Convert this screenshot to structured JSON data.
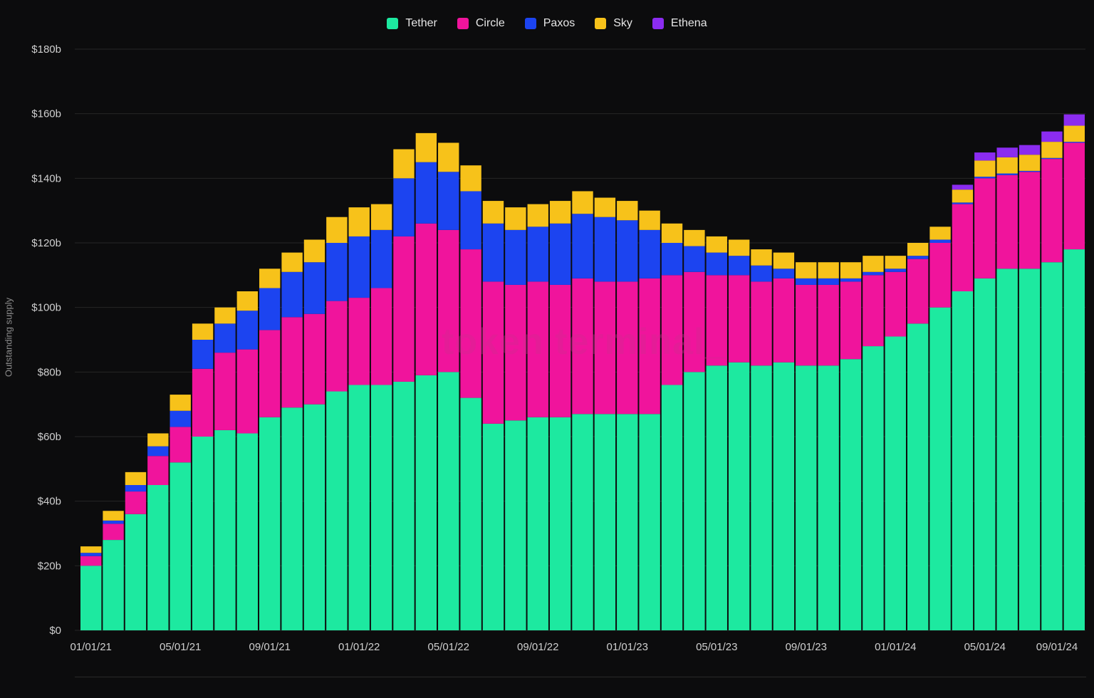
{
  "watermark": "token terminal_",
  "chart_data": {
    "type": "bar",
    "stacked": true,
    "ylabel": "Outstanding supply",
    "ylim": [
      0,
      180
    ],
    "yticks": [
      {
        "value": 0,
        "label": "$0"
      },
      {
        "value": 20,
        "label": "$20b"
      },
      {
        "value": 40,
        "label": "$40b"
      },
      {
        "value": 60,
        "label": "$60b"
      },
      {
        "value": 80,
        "label": "$80b"
      },
      {
        "value": 100,
        "label": "$100b"
      },
      {
        "value": 120,
        "label": "$120b"
      },
      {
        "value": 140,
        "label": "$140b"
      },
      {
        "value": 160,
        "label": "$160b"
      },
      {
        "value": 180,
        "label": "$180b"
      }
    ],
    "xticks": [
      {
        "index": 0,
        "label": "01/01/21"
      },
      {
        "index": 4,
        "label": "05/01/21"
      },
      {
        "index": 8,
        "label": "09/01/21"
      },
      {
        "index": 12,
        "label": "01/01/22"
      },
      {
        "index": 16,
        "label": "05/01/22"
      },
      {
        "index": 20,
        "label": "09/01/22"
      },
      {
        "index": 24,
        "label": "01/01/23"
      },
      {
        "index": 28,
        "label": "05/01/23"
      },
      {
        "index": 32,
        "label": "09/01/23"
      },
      {
        "index": 36,
        "label": "01/01/24"
      },
      {
        "index": 40,
        "label": "05/01/24"
      },
      {
        "index": 44,
        "label": "09/01/24"
      }
    ],
    "legend_position": "top-center",
    "categories": [
      "Jan 2021",
      "Feb 2021",
      "Mar 2021",
      "Apr 2021",
      "May 2021",
      "Jun 2021",
      "Jul 2021",
      "Aug 2021",
      "Sep 2021",
      "Oct 2021",
      "Nov 2021",
      "Dec 2021",
      "Jan 2022",
      "Feb 2022",
      "Mar 2022",
      "Apr 2022",
      "May 2022",
      "Jun 2022",
      "Jul 2022",
      "Aug 2022",
      "Sep 2022",
      "Oct 2022",
      "Nov 2022",
      "Dec 2022",
      "Jan 2023",
      "Feb 2023",
      "Mar 2023",
      "Apr 2023",
      "May 2023",
      "Jun 2023",
      "Jul 2023",
      "Aug 2023",
      "Sep 2023",
      "Oct 2023",
      "Nov 2023",
      "Dec 2023",
      "Jan 2024",
      "Feb 2024",
      "Mar 2024",
      "Apr 2024",
      "May 2024",
      "Jun 2024",
      "Jul 2024",
      "Aug 2024",
      "Sep 2024"
    ],
    "series": [
      {
        "name": "Tether",
        "color": "#1de9a0",
        "values": [
          20,
          28,
          36,
          45,
          52,
          60,
          62,
          61,
          66,
          69,
          70,
          74,
          76,
          76,
          77,
          79,
          80,
          72,
          64,
          65,
          66,
          66,
          67,
          67,
          67,
          67,
          76,
          80,
          82,
          83,
          82,
          83,
          82,
          82,
          84,
          88,
          91,
          95,
          100,
          105,
          109,
          112,
          112,
          114,
          118
        ]
      },
      {
        "name": "Circle",
        "color": "#f0149c",
        "values": [
          3,
          5,
          7,
          9,
          11,
          21,
          24,
          26,
          27,
          28,
          28,
          28,
          27,
          30,
          45,
          47,
          44,
          46,
          44,
          42,
          42,
          41,
          42,
          41,
          41,
          42,
          34,
          31,
          28,
          27,
          26,
          26,
          25,
          25,
          24,
          22,
          20,
          20,
          20,
          27,
          31,
          29,
          30,
          32,
          33
        ]
      },
      {
        "name": "Paxos",
        "color": "#1c44f0",
        "values": [
          1,
          1,
          2,
          3,
          5,
          9,
          9,
          12,
          13,
          14,
          16,
          18,
          19,
          18,
          18,
          19,
          18,
          18,
          18,
          17,
          17,
          19,
          20,
          20,
          19,
          15,
          10,
          8,
          7,
          6,
          5,
          3,
          2,
          2,
          1,
          1,
          1,
          1,
          1,
          0.5,
          0.5,
          0.5,
          0.3,
          0.3,
          0.3
        ]
      },
      {
        "name": "Sky",
        "color": "#f7c21a",
        "values": [
          2,
          3,
          4,
          4,
          5,
          5,
          5,
          6,
          6,
          6,
          7,
          8,
          9,
          8,
          9,
          9,
          9,
          8,
          7,
          7,
          7,
          7,
          7,
          6,
          6,
          6,
          6,
          5,
          5,
          5,
          5,
          5,
          5,
          5,
          5,
          5,
          4,
          4,
          4,
          4,
          5,
          5,
          5,
          5,
          5
        ]
      },
      {
        "name": "Ethena",
        "color": "#8b2cf0",
        "values": [
          0,
          0,
          0,
          0,
          0,
          0,
          0,
          0,
          0,
          0,
          0,
          0,
          0,
          0,
          0,
          0,
          0,
          0,
          0,
          0,
          0,
          0,
          0,
          0,
          0,
          0,
          0,
          0,
          0,
          0,
          0,
          0,
          0,
          0,
          0,
          0,
          0,
          0,
          0,
          1.5,
          2.5,
          3,
          3,
          3.2,
          3.5
        ]
      }
    ]
  }
}
